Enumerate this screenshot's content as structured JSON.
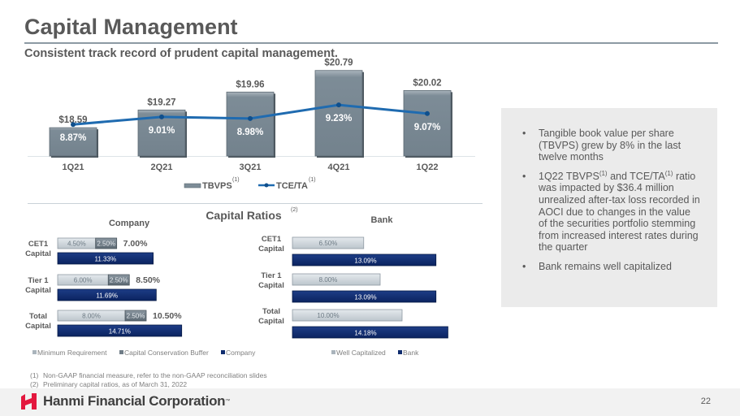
{
  "header": {
    "title": "Capital Management",
    "subtitle": "Consistent track record of prudent capital management."
  },
  "colors": {
    "tbvps_bar": "#7d8c97",
    "tce_line": "#1f6bb0",
    "min_requirement": "#c9d1d7",
    "conservation_buffer": "#6f7c86",
    "company_bar": "#0f2c6e",
    "well_capitalized": "#c9d1d7",
    "bank_bar": "#0f2c6e",
    "brand_red": "#e3173e"
  },
  "chart_data": [
    {
      "type": "bar",
      "title": "",
      "categories": [
        "1Q21",
        "2Q21",
        "3Q21",
        "4Q21",
        "1Q22"
      ],
      "series": [
        {
          "name": "TBVPS",
          "superscript": "(1)",
          "kind": "bar",
          "values": [
            18.59,
            19.27,
            19.96,
            20.79,
            20.02
          ],
          "labels": [
            "$18.59",
            "$19.27",
            "$19.96",
            "$20.79",
            "$20.02"
          ]
        },
        {
          "name": "TCE/TA",
          "superscript": "(1)",
          "kind": "line",
          "values": [
            8.87,
            9.01,
            8.98,
            9.23,
            9.07
          ],
          "labels": [
            "8.87%",
            "9.01%",
            "8.98%",
            "9.23%",
            "9.07%"
          ]
        }
      ],
      "legend": "bottom",
      "grid": false
    },
    {
      "type": "bar",
      "orientation": "horizontal",
      "stacked": true,
      "section_title": "Capital Ratios",
      "section_superscript": "(2)",
      "title": "Company",
      "categories": [
        "CET1 Capital",
        "Tier 1 Capital",
        "Total Capital"
      ],
      "category_lines": [
        [
          "CET1",
          "Capital"
        ],
        [
          "Tier 1",
          "Capital"
        ],
        [
          "Total",
          "Capital"
        ]
      ],
      "series": [
        {
          "name": "Minimum Requirement",
          "values": [
            4.5,
            6.0,
            8.0
          ],
          "labels": [
            "4.50%",
            "6.00%",
            "8.00%"
          ]
        },
        {
          "name": "Capital Conservation Buffer",
          "values": [
            2.5,
            2.5,
            2.5
          ],
          "labels": [
            "2.50%",
            "2.50%",
            "2.50%"
          ]
        },
        {
          "name": "Company",
          "values": [
            11.33,
            11.69,
            14.71
          ],
          "labels": [
            "11.33%",
            "11.69%",
            "14.71%"
          ]
        }
      ],
      "totals": [
        "7.00%",
        "8.50%",
        "10.50%"
      ],
      "legend": "bottom"
    },
    {
      "type": "bar",
      "orientation": "horizontal",
      "title": "Bank",
      "categories": [
        "CET1 Capital",
        "Tier 1 Capital",
        "Total Capital"
      ],
      "category_lines": [
        [
          "CET1",
          "Capital"
        ],
        [
          "Tier 1",
          "Capital"
        ],
        [
          "Total",
          "Capital"
        ]
      ],
      "series": [
        {
          "name": "Well Capitalized",
          "values": [
            6.5,
            8.0,
            10.0
          ],
          "labels": [
            "6.50%",
            "8.00%",
            "10.00%"
          ]
        },
        {
          "name": "Bank",
          "values": [
            13.09,
            13.09,
            14.18
          ],
          "labels": [
            "13.09%",
            "13.09%",
            "14.18%"
          ]
        }
      ],
      "legend": "bottom"
    }
  ],
  "info_box": {
    "bullets": [
      {
        "text": "Tangible book value per share (TBVPS) grew by 8% in the last twelve months"
      },
      {
        "pre": "1Q22 TBVPS",
        "sup1": "(1)",
        "mid": " and TCE/TA",
        "sup2": "(1)",
        "post": " ratio was impacted by $36.4 million unrealized after-tax loss recorded in AOCI due to changes in the value of the securities portfolio stemming from increased interest rates during the quarter"
      },
      {
        "text": "Bank remains well capitalized"
      }
    ],
    "bullet_char": "•"
  },
  "footnotes": [
    {
      "num": "(1)",
      "text": "Non-GAAP financial measure, refer to the non-GAAP reconciliation slides"
    },
    {
      "num": "(2)",
      "text": "Preliminary capital ratios, as of March 31, 2022"
    }
  ],
  "footer": {
    "logo_text": "Hanmi Financial Corporation",
    "logo_tm": "™",
    "page_number": "22"
  }
}
